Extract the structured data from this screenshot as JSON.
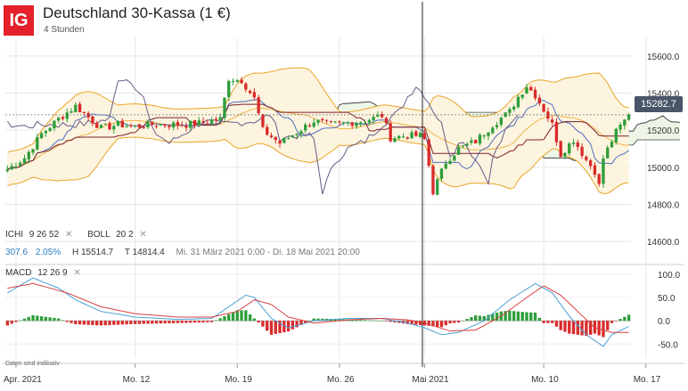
{
  "header": {
    "logo": "IG",
    "title": "Deutschland 30-Kassa (1 €)",
    "subtitle": "4 Stunden",
    "watermark": "Deutschland 30-Kassa"
  },
  "indicators": {
    "ichi_label": "ICHI",
    "ichi_params": "9  26  52",
    "boll_label": "BOLL",
    "boll_params": "20  2",
    "macd_label": "MACD",
    "macd_params": "12  26  9",
    "close_marker": "✕"
  },
  "stats": {
    "change": "307.6",
    "change_pct": "2.05%",
    "high": "H 15514.7",
    "low": "T 14814.4",
    "range": "Mi. 31 März 2021 0:00 - Di. 18 Mai 2021 20:00"
  },
  "current_price": "15282.7",
  "disclaimer": "Daten sind indikativ",
  "colors": {
    "up": "#2e9e3b",
    "down": "#d92b2b",
    "boll": "#e8a526",
    "boll_fill": "#fdf4df",
    "cloud_fill": "#edf5e6",
    "tenkan": "#4f6ec2",
    "kijun": "#7b1f2e",
    "chikou": "#6a5a8a",
    "span": "#444444",
    "macd_line": "#4aa0d8",
    "signal_line": "#d94040"
  },
  "chart_data": {
    "type": "candlestick",
    "title": "Deutschland 30-Kassa (1 €)",
    "interval": "4 Stunden",
    "y_axis": {
      "ticks": [
        14600,
        14800,
        15000,
        15200,
        15400,
        15600
      ],
      "ylim": [
        14500,
        15700
      ]
    },
    "macd_axis": {
      "ticks": [
        "100.0",
        "50.0",
        "0.0",
        "-50.0"
      ],
      "tick_values": [
        100,
        50,
        0,
        -50
      ],
      "ylim": [
        -80,
        115
      ]
    },
    "x_axis": {
      "ticks": [
        "Apr. 2021",
        "Mo. 12",
        "Mo. 19",
        "Mo. 26",
        "Mai 2021",
        "Mo. 10",
        "Mo. 17"
      ],
      "tick_indices": [
        2,
        30,
        54,
        78,
        98,
        126,
        150
      ]
    },
    "month_divider_index": 97,
    "last_price": 15282.7,
    "summary": {
      "change": 307.6,
      "change_pct": 2.05,
      "high": 15514.7,
      "low": 14814.4,
      "from": "Mi. 31 März 2021 0:00",
      "to": "Di. 18 Mai 2021 20:00"
    },
    "close_points": [
      [
        0,
        14990
      ],
      [
        4,
        15050
      ],
      [
        8,
        15180
      ],
      [
        12,
        15260
      ],
      [
        16,
        15330
      ],
      [
        18,
        15290
      ],
      [
        22,
        15210
      ],
      [
        26,
        15230
      ],
      [
        30,
        15220
      ],
      [
        34,
        15230
      ],
      [
        38,
        15230
      ],
      [
        42,
        15230
      ],
      [
        46,
        15240
      ],
      [
        50,
        15260
      ],
      [
        52,
        15480
      ],
      [
        55,
        15470
      ],
      [
        58,
        15370
      ],
      [
        60,
        15200
      ],
      [
        64,
        15130
      ],
      [
        68,
        15190
      ],
      [
        72,
        15250
      ],
      [
        76,
        15230
      ],
      [
        80,
        15240
      ],
      [
        84,
        15250
      ],
      [
        88,
        15280
      ],
      [
        90,
        15160
      ],
      [
        94,
        15170
      ],
      [
        97,
        15170
      ],
      [
        98,
        15150
      ],
      [
        100,
        14870
      ],
      [
        103,
        15030
      ],
      [
        106,
        15100
      ],
      [
        110,
        15140
      ],
      [
        114,
        15230
      ],
      [
        118,
        15300
      ],
      [
        120,
        15380
      ],
      [
        122,
        15440
      ],
      [
        124,
        15390
      ],
      [
        128,
        15230
      ],
      [
        130,
        15070
      ],
      [
        133,
        15150
      ],
      [
        136,
        15040
      ],
      [
        138,
        14980
      ],
      [
        139,
        14900
      ],
      [
        140,
        15050
      ],
      [
        143,
        15190
      ],
      [
        146,
        15282.7
      ]
    ],
    "macd_points": [
      [
        0,
        60
      ],
      [
        6,
        92
      ],
      [
        12,
        70
      ],
      [
        16,
        45
      ],
      [
        22,
        20
      ],
      [
        30,
        8
      ],
      [
        40,
        3
      ],
      [
        48,
        5
      ],
      [
        52,
        30
      ],
      [
        56,
        55
      ],
      [
        58,
        50
      ],
      [
        62,
        5
      ],
      [
        66,
        -15
      ],
      [
        72,
        0
      ],
      [
        80,
        5
      ],
      [
        88,
        5
      ],
      [
        94,
        -5
      ],
      [
        98,
        -15
      ],
      [
        102,
        -30
      ],
      [
        106,
        -25
      ],
      [
        112,
        0
      ],
      [
        118,
        45
      ],
      [
        124,
        80
      ],
      [
        128,
        60
      ],
      [
        132,
        10
      ],
      [
        136,
        -30
      ],
      [
        140,
        -55
      ],
      [
        142,
        -30
      ],
      [
        146,
        -12
      ]
    ],
    "signal_points": [
      [
        0,
        70
      ],
      [
        6,
        80
      ],
      [
        14,
        60
      ],
      [
        22,
        30
      ],
      [
        30,
        15
      ],
      [
        40,
        8
      ],
      [
        48,
        8
      ],
      [
        54,
        20
      ],
      [
        58,
        45
      ],
      [
        62,
        35
      ],
      [
        66,
        8
      ],
      [
        72,
        -5
      ],
      [
        80,
        2
      ],
      [
        88,
        5
      ],
      [
        94,
        2
      ],
      [
        98,
        -5
      ],
      [
        104,
        -22
      ],
      [
        110,
        -20
      ],
      [
        116,
        10
      ],
      [
        122,
        50
      ],
      [
        126,
        75
      ],
      [
        130,
        55
      ],
      [
        134,
        20
      ],
      [
        138,
        -15
      ],
      [
        142,
        -25
      ],
      [
        146,
        -25
      ]
    ]
  }
}
